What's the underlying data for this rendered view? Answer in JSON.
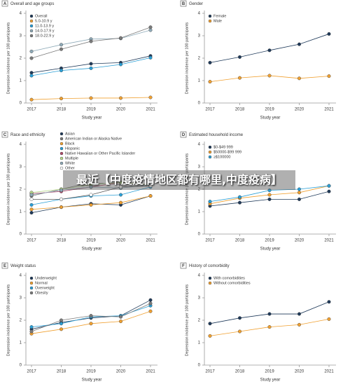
{
  "chart_data": [
    {
      "type": "line",
      "letter": "A",
      "title": "Overall and age groups",
      "ylabel": "Depression incidence per 100 participants",
      "xlabel": "Study year",
      "categories": [
        "2017",
        "2018",
        "2019",
        "2020",
        "2021"
      ],
      "ylim": [
        0,
        4
      ],
      "yticks": [
        0,
        1,
        2,
        3,
        4
      ],
      "legend": "upper left",
      "series": [
        {
          "name": "Overall",
          "color": "#1f3a5a",
          "values": [
            1.35,
            1.55,
            1.75,
            1.8,
            2.1
          ]
        },
        {
          "name": "5.0-10.9 y",
          "color": "#f0a030",
          "values": [
            0.15,
            0.2,
            0.22,
            0.22,
            0.25
          ]
        },
        {
          "name": "11.0-13.9 y",
          "color": "#2a9fd6",
          "values": [
            1.22,
            1.45,
            1.55,
            1.72,
            2.02
          ]
        },
        {
          "name": "14.0-17.9 y",
          "color": "#8eaab8",
          "values": [
            2.3,
            2.6,
            2.85,
            2.88,
            3.25
          ]
        },
        {
          "name": "18.0-22.9 y",
          "color": "#7a7a7a",
          "values": [
            2.0,
            2.4,
            2.75,
            2.9,
            3.38
          ]
        }
      ]
    },
    {
      "type": "line",
      "letter": "B",
      "title": "Gender",
      "ylabel": "Depression incidence per 100 participants",
      "xlabel": "Study year",
      "categories": [
        "2017",
        "2018",
        "2019",
        "2020",
        "2021"
      ],
      "ylim": [
        0,
        4
      ],
      "yticks": [
        0,
        1,
        2,
        3,
        4
      ],
      "legend": "upper left",
      "series": [
        {
          "name": "Female",
          "color": "#1f3a5a",
          "values": [
            1.8,
            2.05,
            2.35,
            2.62,
            3.08
          ]
        },
        {
          "name": "Male",
          "color": "#f0a030",
          "values": [
            0.95,
            1.12,
            1.22,
            1.1,
            1.2
          ]
        }
      ]
    },
    {
      "type": "line",
      "letter": "C",
      "title": "Race and ethnicity",
      "ylabel": "Depression incidence per 100 participants",
      "xlabel": "Study year",
      "categories": [
        "2017",
        "2018",
        "2019",
        "2020",
        "2021"
      ],
      "ylim": [
        0,
        4
      ],
      "yticks": [
        0,
        1,
        2,
        3,
        4
      ],
      "legend": "upper center",
      "series": [
        {
          "name": "Asian",
          "color": "#1f3a5a",
          "values": [
            0.95,
            1.2,
            1.35,
            1.3,
            1.7
          ]
        },
        {
          "name": "American Indian or Alaska Native",
          "color": "#7a7a7a",
          "values": [
            1.7,
            2.0,
            2.3,
            2.2,
            2.2
          ]
        },
        {
          "name": "Black",
          "color": "#f0a030",
          "values": [
            1.1,
            1.2,
            1.3,
            1.4,
            1.7
          ]
        },
        {
          "name": "Hispanic",
          "color": "#2a9fd6",
          "values": [
            1.3,
            1.55,
            1.7,
            1.75,
            2.1
          ]
        },
        {
          "name": "Native Hawaiian or Other Pacific Islander",
          "color": "#b04a6a",
          "values": [
            1.8,
            1.9,
            2.1,
            2.3,
            2.2
          ]
        },
        {
          "name": "Multiple",
          "color": "#b8d98a",
          "values": [
            1.85,
            2.0,
            2.2,
            2.3,
            2.2
          ]
        },
        {
          "name": "White",
          "color": "#8eaab8",
          "values": [
            1.75,
            1.95,
            2.1,
            2.05,
            2.2
          ]
        },
        {
          "name": "Other",
          "color": "#ffffff",
          "values": [
            1.55,
            1.55,
            1.75,
            2.1,
            2.15
          ]
        }
      ]
    },
    {
      "type": "line",
      "letter": "D",
      "title": "Estimated household income",
      "ylabel": "Depression incidence per 100 participants",
      "xlabel": "Study year",
      "categories": [
        "2017",
        "2018",
        "2019",
        "2020",
        "2021"
      ],
      "ylim": [
        0,
        4
      ],
      "yticks": [
        0,
        1,
        2,
        3,
        4
      ],
      "legend": "upper left",
      "series": [
        {
          "name": "$0-$49 999",
          "color": "#1f3a5a",
          "values": [
            1.25,
            1.4,
            1.55,
            1.55,
            1.9
          ]
        },
        {
          "name": "$50000-$99 999",
          "color": "#f0a030",
          "values": [
            1.35,
            1.6,
            1.75,
            1.85,
            2.15
          ]
        },
        {
          "name": "≥$100000",
          "color": "#2a9fd6",
          "values": [
            1.45,
            1.65,
            1.95,
            2.0,
            2.15
          ]
        }
      ]
    },
    {
      "type": "line",
      "letter": "E",
      "title": "Weight status",
      "ylabel": "Depression incidence per 100 participants",
      "xlabel": "Study year",
      "categories": [
        "2017",
        "2018",
        "2019",
        "2020",
        "2021"
      ],
      "ylim": [
        0,
        4
      ],
      "yticks": [
        0,
        1,
        2,
        3,
        4
      ],
      "legend": "upper left",
      "series": [
        {
          "name": "Underweight",
          "color": "#1f3a5a",
          "values": [
            1.6,
            1.9,
            2.1,
            2.2,
            2.9
          ]
        },
        {
          "name": "Normal",
          "color": "#f0a030",
          "values": [
            1.4,
            1.6,
            1.85,
            1.95,
            2.4
          ]
        },
        {
          "name": "Overweight",
          "color": "#2a9fd6",
          "values": [
            1.7,
            1.85,
            2.15,
            2.2,
            2.65
          ]
        },
        {
          "name": "Obesity",
          "color": "#7a7a7a",
          "values": [
            1.5,
            2.0,
            2.2,
            2.15,
            2.75
          ]
        }
      ]
    },
    {
      "type": "line",
      "letter": "F",
      "title": "History of comorbidity",
      "ylabel": "Depression incidence per 100 participants",
      "xlabel": "Study year",
      "categories": [
        "2017",
        "2018",
        "2019",
        "2020",
        "2021"
      ],
      "ylim": [
        0,
        4
      ],
      "yticks": [
        0,
        1,
        2,
        3,
        4
      ],
      "legend": "upper left",
      "series": [
        {
          "name": "With comorbidities",
          "color": "#1f3a5a",
          "values": [
            1.85,
            2.1,
            2.28,
            2.28,
            2.82
          ]
        },
        {
          "name": "Without comorbidities",
          "color": "#f0a030",
          "values": [
            1.3,
            1.5,
            1.7,
            1.8,
            2.05
          ]
        }
      ]
    }
  ],
  "overlay_text": "最近【中度疫情地区都有哪里,中度疫病】"
}
